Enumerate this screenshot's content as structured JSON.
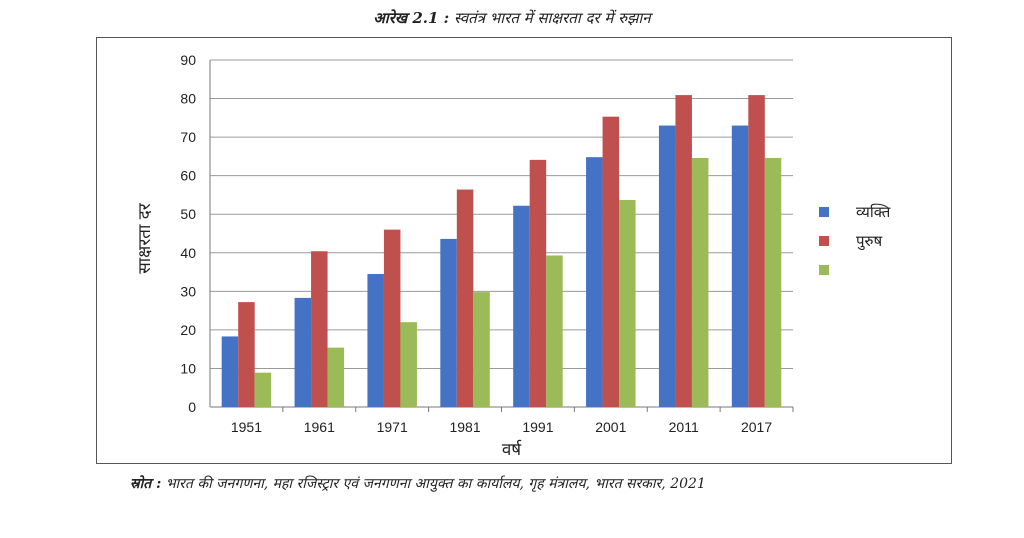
{
  "figure_label": "आरेख 2.1 :",
  "figure_title": "स्वतंत्र भारत में साक्षरता दर में रुझान",
  "source_label": "स्रोत :",
  "source_text": "भारत की जनगणना, महा रजिस्ट्रार एवं जनगणना आयुक्त का कार्यालय, गृह मंत्रालय, भारत सरकार, 2021",
  "chart_data": {
    "type": "bar",
    "title": "",
    "xlabel": "वर्ष",
    "ylabel": "साक्षरता दर",
    "ylim": [
      0,
      90
    ],
    "yticks": [
      0,
      10,
      20,
      30,
      40,
      50,
      60,
      70,
      80,
      90
    ],
    "grid": true,
    "legend_position": "right",
    "categories": [
      "1951",
      "1961",
      "1971",
      "1981",
      "1991",
      "2001",
      "2011",
      "2017"
    ],
    "series": [
      {
        "name": "व्यक्ति",
        "color": "#4472C4",
        "values": [
          18.3,
          28.3,
          34.5,
          43.6,
          52.2,
          64.8,
          73.0,
          73.0
        ]
      },
      {
        "name": "पुरुष",
        "color": "#C0504D",
        "values": [
          27.2,
          40.4,
          46.0,
          56.4,
          64.1,
          75.3,
          80.9,
          80.9
        ]
      },
      {
        "name": "",
        "color": "#9BBB59",
        "values": [
          8.9,
          15.4,
          22.0,
          29.8,
          39.3,
          53.7,
          64.6,
          64.6
        ]
      }
    ]
  }
}
